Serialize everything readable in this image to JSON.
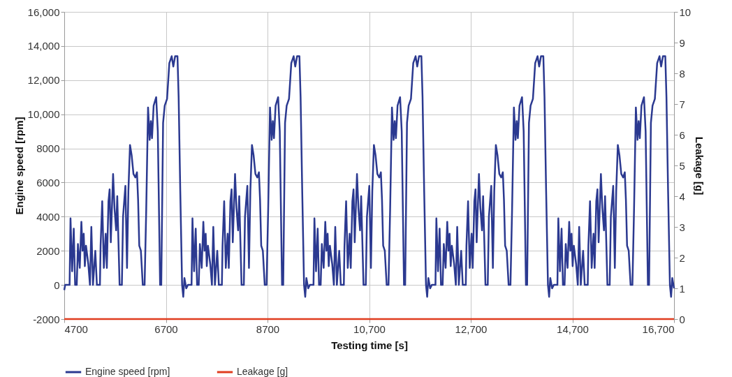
{
  "chart_data": {
    "type": "line",
    "xlabel": "Testing time [s]",
    "ylabel": "Engine speed [rpm]",
    "y2label": "Leakage [g]",
    "xlim": [
      4700,
      16700
    ],
    "xticks": [
      4700,
      6700,
      8700,
      {
        "value": 10700,
        "label": "10,700"
      },
      {
        "value": 12700,
        "label": "12,700"
      },
      {
        "value": 14700,
        "label": "14,700"
      },
      {
        "value": 16700,
        "label": "16,700"
      }
    ],
    "ylim": [
      -2000,
      16000
    ],
    "yticks": [
      -2000,
      0,
      2000,
      4000,
      6000,
      8000,
      {
        "value": 10000,
        "label": "10,000"
      },
      {
        "value": 12000,
        "label": "12,000"
      },
      {
        "value": 14000,
        "label": "14,000"
      },
      {
        "value": 16000,
        "label": "16,000"
      }
    ],
    "y2lim": [
      0,
      10
    ],
    "y2ticks": [
      0,
      1,
      2,
      3,
      4,
      5,
      6,
      7,
      8,
      9,
      10
    ],
    "grid": true,
    "legend": "bottom",
    "line_style": "solid",
    "marker": "none",
    "series": [
      {
        "name": "Engine speed [rpm]",
        "color": "#2b3990",
        "x": [
          4700,
          4718,
          4787,
          4805,
          4823,
          4855,
          4887,
          4914,
          4946,
          4969,
          5005,
          5037,
          5060,
          5083,
          5105,
          5128,
          5174,
          5206,
          5233,
          5265,
          5311,
          5342,
          5402,
          5415,
          5447,
          5479,
          5516,
          5538,
          5570,
          5593,
          5616,
          5661,
          5689,
          5721,
          5743,
          5789,
          5834,
          5857,
          5903,
          5935,
          5962,
          5994,
          6026,
          6062,
          6099,
          6131,
          6153,
          6176,
          6208,
          6245,
          6281,
          6313,
          6349,
          6381,
          6404,
          6427,
          6459,
          6509,
          6541,
          6586,
          6609,
          6645,
          6677,
          6723,
          6768,
          6814,
          6846,
          6882,
          6928,
          6951,
          6983,
          7019,
          7042,
          7065,
          7101,
          7133,
          7205,
          7223,
          7255,
          7287,
          7314,
          7346,
          7369,
          7405,
          7437,
          7460,
          7483,
          7505,
          7528,
          7574,
          7606,
          7633,
          7665,
          7711,
          7742,
          7802,
          7815,
          7847,
          7879,
          7916,
          7938,
          7970,
          7993,
          8016,
          8061,
          8089,
          8121,
          8143,
          8189,
          8234,
          8257,
          8303,
          8335,
          8362,
          8394,
          8426,
          8462,
          8499,
          8531,
          8553,
          8576,
          8608,
          8645,
          8681,
          8713,
          8749,
          8781,
          8804,
          8827,
          8859,
          8909,
          8941,
          8986,
          9009,
          9045,
          9077,
          9123,
          9168,
          9214,
          9246,
          9282,
          9328,
          9351,
          9383,
          9419,
          9442,
          9465,
          9501,
          9533,
          9605,
          9623,
          9655,
          9687,
          9714,
          9746,
          9769,
          9805,
          9837,
          9860,
          9883,
          9905,
          9928,
          9974,
          10006,
          10033,
          10065,
          10111,
          10142,
          10202,
          10215,
          10247,
          10279,
          10316,
          10338,
          10370,
          10393,
          10416,
          10461,
          10489,
          10521,
          10543,
          10589,
          10634,
          10657,
          10703,
          10735,
          10762,
          10794,
          10826,
          10862,
          10899,
          10931,
          10953,
          10976,
          11008,
          11045,
          11081,
          11113,
          11149,
          11181,
          11204,
          11227,
          11259,
          11309,
          11341,
          11386,
          11409,
          11445,
          11477,
          11523,
          11568,
          11614,
          11646,
          11682,
          11728,
          11751,
          11783,
          11819,
          11842,
          11865,
          11901,
          11933,
          12005,
          12023,
          12055,
          12087,
          12114,
          12146,
          12169,
          12205,
          12237,
          12260,
          12283,
          12305,
          12328,
          12374,
          12406,
          12433,
          12465,
          12511,
          12542,
          12602,
          12615,
          12647,
          12679,
          12716,
          12738,
          12770,
          12793,
          12816,
          12861,
          12889,
          12921,
          12943,
          12989,
          13034,
          13057,
          13103,
          13135,
          13162,
          13194,
          13226,
          13262,
          13299,
          13331,
          13353,
          13376,
          13408,
          13445,
          13481,
          13513,
          13549,
          13581,
          13604,
          13627,
          13659,
          13709,
          13741,
          13786,
          13809,
          13845,
          13877,
          13923,
          13968,
          14014,
          14046,
          14082,
          14128,
          14151,
          14183,
          14219,
          14242,
          14265,
          14301,
          14333,
          14405,
          14423,
          14455,
          14487,
          14514,
          14546,
          14569,
          14605,
          14637,
          14660,
          14683,
          14705,
          14728,
          14774,
          14806,
          14833,
          14865,
          14911,
          14942,
          15002,
          15015,
          15047,
          15079,
          15116,
          15138,
          15170,
          15193,
          15216,
          15261,
          15289,
          15321,
          15343,
          15389,
          15434,
          15457,
          15503,
          15535,
          15562,
          15594,
          15626,
          15662,
          15699,
          15731,
          15753,
          15776,
          15808,
          15845,
          15881,
          15913,
          15949,
          15981,
          16004,
          16027,
          16059,
          16109,
          16141,
          16186,
          16209,
          16245,
          16277,
          16323,
          16368,
          16414,
          16446,
          16482,
          16528,
          16551,
          16583,
          16619,
          16642,
          16665,
          16700
        ],
        "values": [
          -300,
          0,
          0,
          0,
          3900,
          800,
          3300,
          0,
          0,
          2400,
          1000,
          3700,
          2000,
          3000,
          1100,
          2300,
          1200,
          0,
          3400,
          0,
          2000,
          0,
          0,
          2300,
          4900,
          1000,
          3000,
          1000,
          4900,
          5600,
          2500,
          6500,
          4500,
          3200,
          5200,
          0,
          0,
          4000,
          5800,
          1000,
          5500,
          8200,
          7600,
          6500,
          6300,
          6600,
          5000,
          2300,
          2000,
          0,
          0,
          4400,
          10400,
          8500,
          9600,
          8600,
          10500,
          11000,
          9000,
          0,
          0,
          9500,
          10500,
          10900,
          13000,
          13400,
          12800,
          13400,
          13400,
          11000,
          5500,
          0,
          -700,
          400,
          -200,
          0,
          0,
          3900,
          800,
          3300,
          0,
          0,
          2400,
          1000,
          3700,
          2000,
          3000,
          1100,
          2300,
          1200,
          0,
          3400,
          0,
          2000,
          0,
          0,
          2300,
          4900,
          1000,
          3000,
          1000,
          4900,
          5600,
          2500,
          6500,
          4500,
          3200,
          5200,
          0,
          0,
          4000,
          5800,
          1000,
          5500,
          8200,
          7600,
          6500,
          6300,
          6600,
          5000,
          2300,
          2000,
          0,
          0,
          4400,
          10400,
          8500,
          9600,
          8600,
          10500,
          11000,
          9000,
          0,
          0,
          9500,
          10500,
          10900,
          13000,
          13400,
          12800,
          13400,
          13400,
          11000,
          5500,
          0,
          -700,
          400,
          -200,
          0,
          0,
          3900,
          800,
          3300,
          0,
          0,
          2400,
          1000,
          3700,
          2000,
          3000,
          1100,
          2300,
          1200,
          0,
          3400,
          0,
          2000,
          0,
          0,
          2300,
          4900,
          1000,
          3000,
          1000,
          4900,
          5600,
          2500,
          6500,
          4500,
          3200,
          5200,
          0,
          0,
          4000,
          5800,
          1000,
          5500,
          8200,
          7600,
          6500,
          6300,
          6600,
          5000,
          2300,
          2000,
          0,
          0,
          4400,
          10400,
          8500,
          9600,
          8600,
          10500,
          11000,
          9000,
          0,
          0,
          9500,
          10500,
          10900,
          13000,
          13400,
          12800,
          13400,
          13400,
          11000,
          5500,
          0,
          -700,
          400,
          -200,
          0,
          0,
          3900,
          800,
          3300,
          0,
          0,
          2400,
          1000,
          3700,
          2000,
          3000,
          1100,
          2300,
          1200,
          0,
          3400,
          0,
          2000,
          0,
          0,
          2300,
          4900,
          1000,
          3000,
          1000,
          4900,
          5600,
          2500,
          6500,
          4500,
          3200,
          5200,
          0,
          0,
          4000,
          5800,
          1000,
          5500,
          8200,
          7600,
          6500,
          6300,
          6600,
          5000,
          2300,
          2000,
          0,
          0,
          4400,
          10400,
          8500,
          9600,
          8600,
          10500,
          11000,
          9000,
          0,
          0,
          9500,
          10500,
          10900,
          13000,
          13400,
          12800,
          13400,
          13400,
          11000,
          5500,
          0,
          -700,
          400,
          -200,
          0,
          0,
          3900,
          800,
          3300,
          0,
          0,
          2400,
          1000,
          3700,
          2000,
          3000,
          1100,
          2300,
          1200,
          0,
          3400,
          0,
          2000,
          0,
          0,
          2300,
          4900,
          1000,
          3000,
          1000,
          4900,
          5600,
          2500,
          6500,
          4500,
          3200,
          5200,
          0,
          0,
          4000,
          5800,
          1000,
          5500,
          8200,
          7600,
          6500,
          6300,
          6600,
          5000,
          2300,
          2000,
          0,
          0,
          4400,
          10400,
          8500,
          9600,
          8600,
          10500,
          11000,
          9000,
          0,
          0,
          9500,
          10500,
          10900,
          13000,
          13400,
          12800,
          13400,
          13400,
          11000,
          5500,
          0,
          -700,
          400,
          -200
        ]
      },
      {
        "name": "Leakage [g]",
        "color": "#e03c1f",
        "axis": "y2",
        "x": [
          4700,
          16700
        ],
        "values": [
          0,
          0
        ]
      }
    ]
  }
}
